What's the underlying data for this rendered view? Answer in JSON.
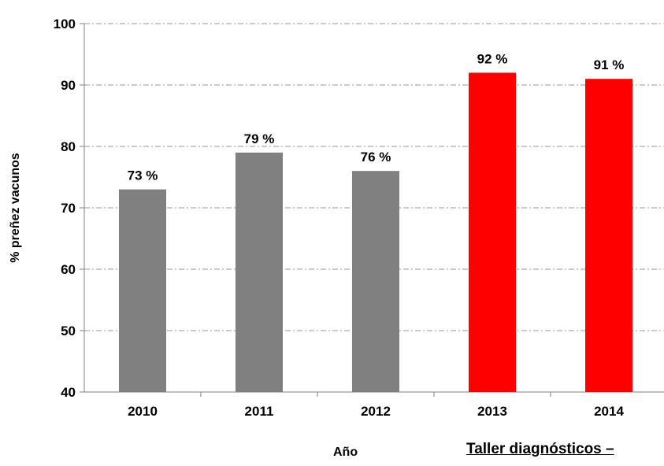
{
  "chart_data": {
    "type": "bar",
    "title": "",
    "xlabel": "Año",
    "ylabel": "% preñez vacunos",
    "categories": [
      "2010",
      "2011",
      "2012",
      "2013",
      "2014"
    ],
    "values": [
      73,
      79,
      76,
      92,
      91
    ],
    "data_labels": [
      "73 %",
      "79 %",
      "76 %",
      "92 %",
      "91 %"
    ],
    "bar_colors": [
      "#808080",
      "#808080",
      "#808080",
      "#ff0000",
      "#ff0000"
    ],
    "ylim": [
      40,
      100
    ],
    "yticks": [
      40,
      50,
      60,
      70,
      80,
      90,
      100
    ],
    "grid": true
  },
  "footer": {
    "text": "Taller diagnósticos –"
  }
}
